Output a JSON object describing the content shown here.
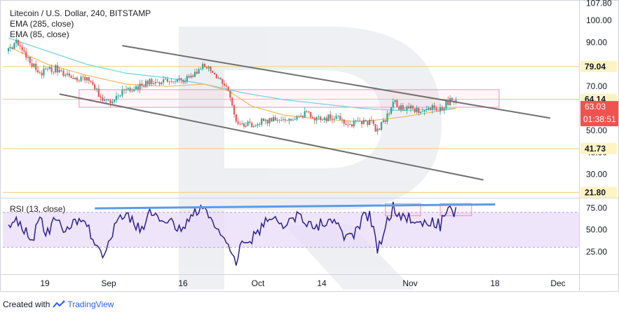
{
  "header": {
    "title": "Litecoin / U.S. Dollar, 240, BITSTAMP",
    "ema_long": "EMA (285, close)",
    "ema_short": "EMA (85, close)"
  },
  "rsi": {
    "label": "RSI (13, close)"
  },
  "footer": {
    "created_with": "Created with",
    "brand": "TradingView"
  },
  "colors": {
    "up": "#26a69a",
    "down": "#ef5350",
    "ema_long": "#6fd0e6",
    "ema_short": "#f5b85a",
    "level": "#f4c97a",
    "trend": "#707070",
    "zone": "#f48fb1",
    "rsi_line": "#2c1f8f",
    "rsi_band": "#e8dcfa",
    "rsi_trend": "#5b9be8",
    "last_price_bg": "#ef5350",
    "level_label_bg": "#fff3c4"
  },
  "chart_data": [
    {
      "type": "candlestick",
      "symbol": "Litecoin / U.S. Dollar",
      "interval": "240",
      "exchange": "BITSTAMP",
      "x_ticks": [
        "19",
        "Sep",
        "16",
        "Oct",
        "14",
        "Nov",
        "18",
        "Dec"
      ],
      "y_ticks": [
        30.0,
        40.0,
        50.0,
        60.0,
        70.0,
        80.0,
        90.0,
        100.0,
        107.8
      ],
      "ylim": [
        20,
        108
      ],
      "horizontal_levels": [
        79.04,
        64.14,
        41.73,
        21.8
      ],
      "last_price": 63.03,
      "countdown": "01:38:51",
      "price_path": [
        [
          0,
          86
        ],
        [
          2,
          91
        ],
        [
          4,
          86
        ],
        [
          6,
          80
        ],
        [
          8,
          76
        ],
        [
          10,
          77
        ],
        [
          12,
          78
        ],
        [
          14,
          75
        ],
        [
          16,
          74
        ],
        [
          18,
          73
        ],
        [
          20,
          74
        ],
        [
          22,
          69
        ],
        [
          24,
          64
        ],
        [
          26,
          64
        ],
        [
          28,
          66
        ],
        [
          30,
          68
        ],
        [
          32,
          69
        ],
        [
          34,
          70
        ],
        [
          36,
          72
        ],
        [
          38,
          71
        ],
        [
          40,
          72
        ],
        [
          42,
          73
        ],
        [
          44,
          72
        ],
        [
          46,
          74
        ],
        [
          48,
          77
        ],
        [
          50,
          80
        ],
        [
          52,
          76
        ],
        [
          54,
          72
        ],
        [
          56,
          69
        ],
        [
          58,
          55
        ],
        [
          60,
          53
        ],
        [
          62,
          53
        ],
        [
          64,
          54
        ],
        [
          66,
          54
        ],
        [
          68,
          55
        ],
        [
          70,
          55
        ],
        [
          72,
          56
        ],
        [
          74,
          56
        ],
        [
          76,
          58
        ],
        [
          78,
          56
        ],
        [
          80,
          55
        ],
        [
          82,
          56
        ],
        [
          84,
          57
        ],
        [
          86,
          53
        ],
        [
          88,
          53
        ],
        [
          90,
          54
        ],
        [
          92,
          54
        ],
        [
          94,
          50
        ],
        [
          96,
          55
        ],
        [
          98,
          63
        ],
        [
          100,
          60
        ],
        [
          102,
          61
        ],
        [
          104,
          59
        ],
        [
          106,
          59
        ],
        [
          108,
          60
        ],
        [
          110,
          60
        ],
        [
          112,
          63
        ],
        [
          114,
          64
        ]
      ],
      "ema_long_path": [
        [
          0,
          92
        ],
        [
          10,
          86
        ],
        [
          20,
          80
        ],
        [
          30,
          76
        ],
        [
          40,
          74
        ],
        [
          50,
          71
        ],
        [
          60,
          67
        ],
        [
          70,
          64
        ],
        [
          80,
          62
        ],
        [
          90,
          60
        ],
        [
          100,
          59
        ],
        [
          114,
          60
        ]
      ],
      "ema_short_path": [
        [
          0,
          88
        ],
        [
          10,
          80
        ],
        [
          20,
          75
        ],
        [
          30,
          71
        ],
        [
          40,
          70
        ],
        [
          50,
          71
        ],
        [
          56,
          68
        ],
        [
          62,
          61
        ],
        [
          70,
          57
        ],
        [
          80,
          55
        ],
        [
          90,
          54
        ],
        [
          100,
          56
        ],
        [
          114,
          60
        ]
      ],
      "trend_lines": [
        {
          "from": [
            29,
            88.5
          ],
          "to": [
            138,
            55.6
          ]
        },
        {
          "from": [
            13,
            66.5
          ],
          "to": [
            121,
            27.5
          ]
        }
      ],
      "zones": [
        {
          "x": [
            18,
            125
          ],
          "y": [
            60.5,
            68.5
          ]
        }
      ]
    },
    {
      "type": "line",
      "indicator": "RSI (13, close)",
      "y_ticks": [
        25.0,
        50.0,
        75.0
      ],
      "ylim": [
        0,
        85
      ],
      "band": [
        30,
        70
      ],
      "rsi_path": [
        [
          0,
          55
        ],
        [
          2,
          65
        ],
        [
          4,
          50
        ],
        [
          6,
          38
        ],
        [
          8,
          60
        ],
        [
          10,
          45
        ],
        [
          12,
          62
        ],
        [
          14,
          48
        ],
        [
          16,
          55
        ],
        [
          18,
          62
        ],
        [
          20,
          55
        ],
        [
          22,
          35
        ],
        [
          24,
          25
        ],
        [
          26,
          40
        ],
        [
          28,
          60
        ],
        [
          30,
          70
        ],
        [
          32,
          55
        ],
        [
          34,
          48
        ],
        [
          36,
          70
        ],
        [
          38,
          60
        ],
        [
          40,
          62
        ],
        [
          42,
          55
        ],
        [
          44,
          48
        ],
        [
          46,
          65
        ],
        [
          48,
          72
        ],
        [
          50,
          75
        ],
        [
          52,
          55
        ],
        [
          54,
          48
        ],
        [
          56,
          38
        ],
        [
          58,
          15
        ],
        [
          60,
          42
        ],
        [
          62,
          40
        ],
        [
          64,
          48
        ],
        [
          66,
          62
        ],
        [
          68,
          65
        ],
        [
          70,
          58
        ],
        [
          72,
          62
        ],
        [
          74,
          66
        ],
        [
          76,
          60
        ],
        [
          78,
          52
        ],
        [
          80,
          58
        ],
        [
          82,
          64
        ],
        [
          84,
          60
        ],
        [
          86,
          38
        ],
        [
          88,
          45
        ],
        [
          90,
          62
        ],
        [
          92,
          68
        ],
        [
          94,
          28
        ],
        [
          96,
          52
        ],
        [
          98,
          76
        ],
        [
          100,
          66
        ],
        [
          102,
          64
        ],
        [
          104,
          58
        ],
        [
          106,
          55
        ],
        [
          108,
          62
        ],
        [
          110,
          55
        ],
        [
          112,
          76
        ],
        [
          114,
          70
        ]
      ],
      "trend_lines": [
        {
          "from": [
            22,
            74.5
          ],
          "to": [
            124,
            79
          ]
        }
      ],
      "zones": [
        {
          "x": [
            96,
            105
          ],
          "y": [
            66,
            80
          ]
        },
        {
          "x": [
            110,
            118
          ],
          "y": [
            66,
            80
          ]
        }
      ]
    }
  ]
}
